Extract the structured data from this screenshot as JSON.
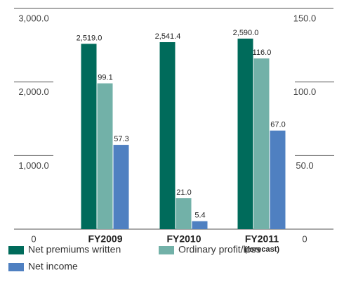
{
  "chart_data": {
    "type": "bar",
    "categories": [
      [
        "FY2009"
      ],
      [
        "FY2010"
      ],
      [
        "FY2011",
        "(forecast)"
      ]
    ],
    "series": [
      {
        "name": "Net premiums written",
        "color": "#006b5b",
        "values": [
          2519.0,
          2541.4,
          2590.0
        ],
        "value_labels": [
          "2,519.0",
          "2,541.4",
          "2,590.0"
        ]
      },
      {
        "name": "Ordinary profit/loss",
        "color": "#72b1a8",
        "axis": "y2",
        "values": [
          99.1,
          21.0,
          116.0
        ],
        "value_labels": [
          "99.1",
          "21.0",
          "116.0"
        ]
      },
      {
        "name": "Net income",
        "color": "#4f80c1",
        "axis": "y2",
        "values": [
          57.3,
          5.4,
          67.0
        ],
        "value_labels": [
          "57.3",
          "5.4",
          "67.0"
        ]
      }
    ],
    "ylim": [
      0,
      3000
    ],
    "yticks": [
      0,
      {
        "value": 1000,
        "label": "1,000.0"
      },
      {
        "value": 2000,
        "label": "2,000.0"
      },
      {
        "value": 3000,
        "label": "3,000.0"
      }
    ],
    "y2lim": [
      0,
      150
    ],
    "y2ticks": [
      0,
      {
        "value": 50,
        "label": "50.0"
      },
      {
        "value": 100,
        "label": "100.0"
      },
      {
        "value": 150,
        "label": "150.0"
      }
    ]
  }
}
